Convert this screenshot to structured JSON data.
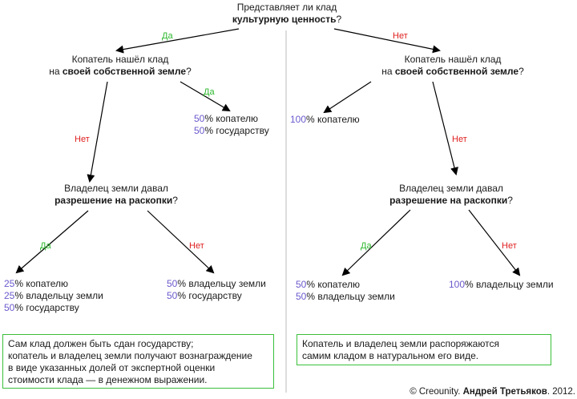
{
  "root": {
    "line1": "Представляет ли клад",
    "line2_bold": "культурную ценность",
    "line2_suffix": "?"
  },
  "left": {
    "branch_label": "Да",
    "q1": {
      "line1": "Копатель нашёл клад",
      "prefix": "на ",
      "bold": "своей собственной земле",
      "suffix": "?"
    },
    "q1_yes_label": "Да",
    "q1_yes_shares": [
      {
        "pct": "50",
        "text": "% копателю"
      },
      {
        "pct": "50",
        "text": "% государству"
      }
    ],
    "q1_no_label": "Нет",
    "q2": {
      "line1": "Владелец земли давал",
      "bold": "разрешение на раскопки",
      "suffix": "?"
    },
    "q2_yes_label": "Да",
    "q2_yes_shares": [
      {
        "pct": "25",
        "text": "% копателю"
      },
      {
        "pct": "25",
        "text": "% владельцу земли"
      },
      {
        "pct": "50",
        "text": "% государству"
      }
    ],
    "q2_no_label": "Нет",
    "q2_no_shares": [
      {
        "pct": "50",
        "text": "% владельцу земли"
      },
      {
        "pct": "50",
        "text": "% государству"
      }
    ],
    "note": [
      "Сам клад должен быть сдан государству;",
      "копатель и владелец земли получают вознаграждение",
      "в виде указанных долей от экспертной оценки",
      "стоимости клада — в денежном выражении."
    ]
  },
  "right": {
    "branch_label": "Нет",
    "q1": {
      "line1": "Копатель нашёл клад",
      "prefix": "на ",
      "bold": "своей собственной земле",
      "suffix": "?"
    },
    "q1_yes_share": {
      "pct": "100",
      "text": "% копателю"
    },
    "q1_no_label": "Нет",
    "q2": {
      "line1": "Владелец земли давал",
      "bold": "разрешение на раскопки",
      "suffix": "?"
    },
    "q2_yes_label": "Да",
    "q2_yes_shares": [
      {
        "pct": "50",
        "text": "% копателю"
      },
      {
        "pct": "50",
        "text": "% владельцу земли"
      }
    ],
    "q2_no_label": "Нет",
    "q2_no_share": {
      "pct": "100",
      "text": "% владельцу земли"
    },
    "note": [
      "Копатель и владелец земли распоряжаются",
      "самим кладом в натуральном его виде."
    ]
  },
  "footer": {
    "copyright": "© Creounity. ",
    "author_bold": "Андрей Третьяков",
    "year": ". 2012."
  },
  "colors": {
    "yes": "#2db82d",
    "no": "#e02020",
    "percent": "#6a5acd",
    "note_border": "#3bbf3b",
    "divider": "#bbbbbb"
  }
}
